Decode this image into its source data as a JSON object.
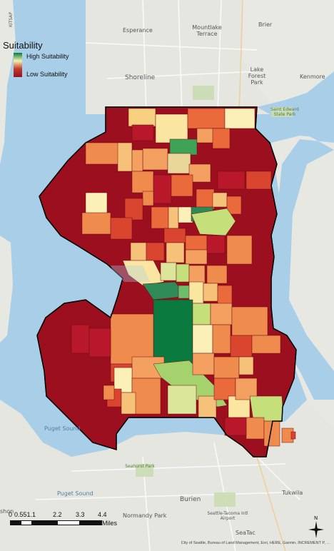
{
  "legend": {
    "title": "Suitability",
    "high_label": "High Suitability",
    "low_label": "Low Suitability",
    "colors": {
      "high": "#0b7a3e",
      "mid": "#f5f0b0",
      "low": "#9b0f1f"
    }
  },
  "places": {
    "esperance": "Esperance",
    "mountlake_terrace": "Mountlake Terrace",
    "brier": "Brier",
    "shoreline": "Shoreline",
    "lake_forest_park": "Lake Forest Park",
    "kenmore": "Kenmore",
    "puget_sound_1": "Puget Sound",
    "puget_sound_2": "Puget Sound",
    "burien": "Burien",
    "tukwila": "Tukwila",
    "normandy_park": "Normandy Park",
    "seatac": "SeaTac",
    "kitsap": "KITSAP",
    "saint_edward": "Saint Edward State Park",
    "seahurst": "Seahurst Park",
    "tacoma_airport": "Seattle-Tacoma Intl Airport",
    "burien_left": "shon"
  },
  "scale": {
    "ticks": [
      "0",
      "0.551.1",
      "2.2",
      "3.3",
      "4.4"
    ],
    "unit": "Miles"
  },
  "attribution": "City of Seattle, Bureau of Land Management, Esri, HERE, Garmin, INCREMENT P, ...",
  "compass": "north-arrow-icon"
}
